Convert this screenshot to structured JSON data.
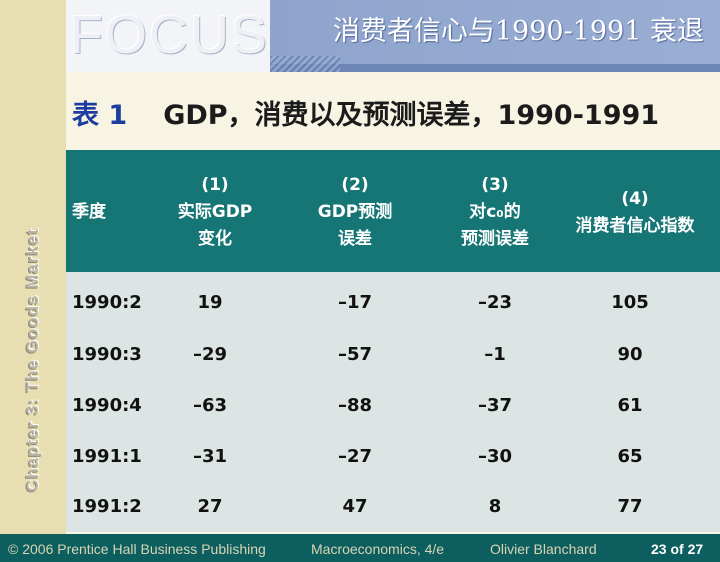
{
  "sidebar": {
    "vertical_text": "Chapter 3: The Goods Market"
  },
  "logo": {
    "text": "FOCUS"
  },
  "header": {
    "title": "消费者信心与1990-1991 衰退"
  },
  "table_title": {
    "number": "表 1",
    "text": "GDP，消费以及预测误差，1990-1991"
  },
  "table": {
    "headers": [
      {
        "lines": [
          "季度"
        ]
      },
      {
        "lines": [
          "(1)",
          "实际GDP",
          "变化"
        ]
      },
      {
        "lines": [
          "(2)",
          "GDP预测",
          "误差"
        ]
      },
      {
        "lines": [
          "(3)",
          "对c₀的",
          "预测误差"
        ]
      },
      {
        "lines": [
          "(4)",
          "消费者信心指数"
        ]
      }
    ],
    "rows": [
      [
        "1990:2",
        "19",
        "–17",
        "–23",
        "105"
      ],
      [
        "1990:3",
        "–29",
        "–57",
        "–1",
        "90"
      ],
      [
        "1990:4",
        "–63",
        "–88",
        "–37",
        "61"
      ],
      [
        "1991:1",
        "–31",
        "–27",
        "–30",
        "65"
      ],
      [
        "1991:2",
        "27",
        "47",
        "8",
        "77"
      ]
    ]
  },
  "footer": {
    "copyright": "© 2006 Prentice Hall Business Publishing",
    "book": "Macroeconomics, 4/e",
    "author": "Olivier Blanchard",
    "page": "23 of 27"
  }
}
